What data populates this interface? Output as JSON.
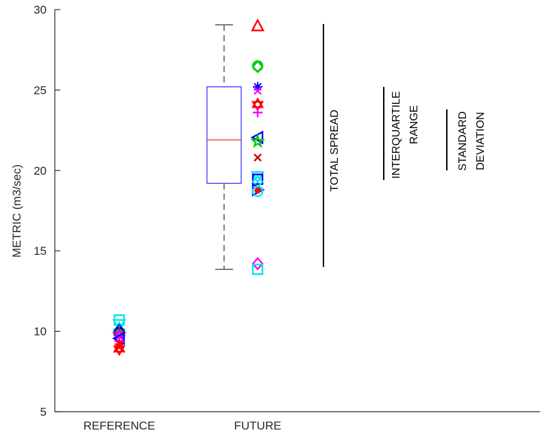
{
  "chart_data": {
    "type": "box",
    "ylabel": "METRIC (m3/sec)",
    "xlabel": "",
    "ylim": [
      5,
      30
    ],
    "yticks": [
      5,
      10,
      15,
      20,
      25,
      30
    ],
    "categories": [
      "REFERENCE",
      "FUTURE"
    ],
    "grid": false,
    "box": {
      "category": "FUTURE",
      "min": 13.85,
      "q1": 19.2,
      "median": 21.9,
      "q3": 25.2,
      "max": 29.05,
      "box_color": "#3333ff",
      "median_color": "#ff3333",
      "whisker_color": "#555555"
    },
    "reference_points": [
      {
        "y": 10.7,
        "marker": "square",
        "color": "#00e5e5"
      },
      {
        "y": 10.4,
        "marker": "triangle-down",
        "color": "#00e5e5"
      },
      {
        "y": 10.2,
        "marker": "triangle-up",
        "color": "#00e5e5"
      },
      {
        "y": 10.05,
        "marker": "diamond",
        "color": "#0000ff"
      },
      {
        "y": 9.95,
        "marker": "hexagram",
        "color": "#00cc00"
      },
      {
        "y": 9.9,
        "marker": "circle",
        "color": "#0000cc"
      },
      {
        "y": 9.8,
        "marker": "pentagram",
        "color": "#cc00cc"
      },
      {
        "y": 9.6,
        "marker": "diamond",
        "color": "#ff00ff"
      },
      {
        "y": 9.55,
        "marker": "triangle-left",
        "color": "#0000ff"
      },
      {
        "y": 9.4,
        "marker": "plus",
        "color": "#ff00ff"
      },
      {
        "y": 9.2,
        "marker": "asterisk",
        "color": "#ff0000"
      },
      {
        "y": 9.0,
        "marker": "x",
        "color": "#ff0000"
      },
      {
        "y": 8.9,
        "marker": "hexagram",
        "color": "#ff0000"
      }
    ],
    "future_points": [
      {
        "y": 29.0,
        "marker": "triangle-up",
        "color": "#ff0000"
      },
      {
        "y": 26.5,
        "marker": "circle",
        "color": "#00cc00"
      },
      {
        "y": 26.45,
        "marker": "diamond",
        "color": "#00cc00"
      },
      {
        "y": 25.2,
        "marker": "asterisk",
        "color": "#0000ff"
      },
      {
        "y": 24.95,
        "marker": "x",
        "color": "#ff00ff"
      },
      {
        "y": 24.1,
        "marker": "hexagram",
        "color": "#ff0000"
      },
      {
        "y": 23.6,
        "marker": "plus",
        "color": "#ff00ff"
      },
      {
        "y": 22.05,
        "marker": "triangle-left",
        "color": "#0000ff"
      },
      {
        "y": 21.8,
        "marker": "pentagram",
        "color": "#00cc00"
      },
      {
        "y": 20.8,
        "marker": "x",
        "color": "#cc0000"
      },
      {
        "y": 19.6,
        "marker": "triangle-down",
        "color": "#00e5e5"
      },
      {
        "y": 19.45,
        "marker": "square",
        "color": "#0000ff"
      },
      {
        "y": 19.3,
        "marker": "diamond",
        "color": "#00e5e5"
      },
      {
        "y": 18.8,
        "marker": "triangle-right",
        "color": "#0000ff"
      },
      {
        "y": 18.7,
        "marker": "circle",
        "color": "#00e5e5"
      },
      {
        "y": 18.75,
        "marker": "dot",
        "color": "#ff0000"
      },
      {
        "y": 14.2,
        "marker": "diamond",
        "color": "#ff00ff"
      },
      {
        "y": 13.85,
        "marker": "square",
        "color": "#00e5e5"
      }
    ],
    "annotations": [
      {
        "text": "TOTAL SPREAD",
        "bar_from": 14.0,
        "bar_to": 29.1
      },
      {
        "text": "INTERQUARTILE",
        "text2": "RANGE",
        "bar_from": 19.4,
        "bar_to": 25.2
      },
      {
        "text": "STANDARD",
        "text2": "DEVIATION",
        "bar_from": 20.0,
        "bar_to": 23.8
      }
    ]
  }
}
